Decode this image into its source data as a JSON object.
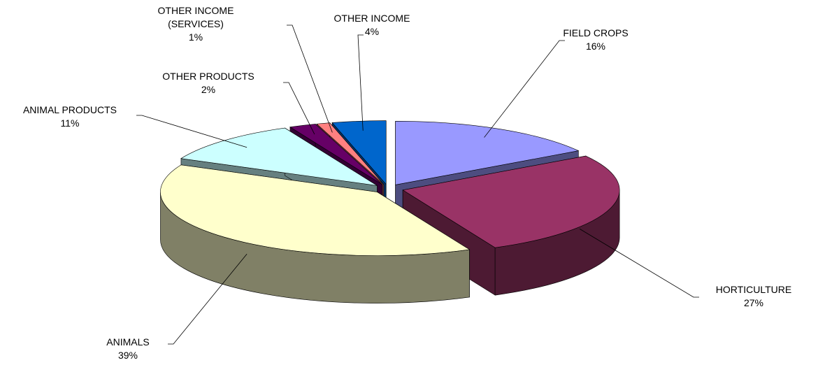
{
  "chart_data": {
    "type": "pie3d",
    "categories": [
      "FIELD CROPS",
      "HORTICULTURE",
      "ANIMALS",
      "ANIMAL PRODUCTS",
      "OTHER PRODUCTS",
      "OTHER INCOME (SERVICES)",
      "OTHER INCOME"
    ],
    "values": [
      16,
      27,
      39,
      11,
      2,
      1,
      4
    ],
    "value_labels": [
      "16%",
      "27%",
      "39%",
      "11%",
      "2%",
      "1%",
      "4%"
    ],
    "colors": [
      "#9999ff",
      "#993366",
      "#ffffcc",
      "#ccffff",
      "#660066",
      "#ff8080",
      "#0066cc"
    ]
  }
}
